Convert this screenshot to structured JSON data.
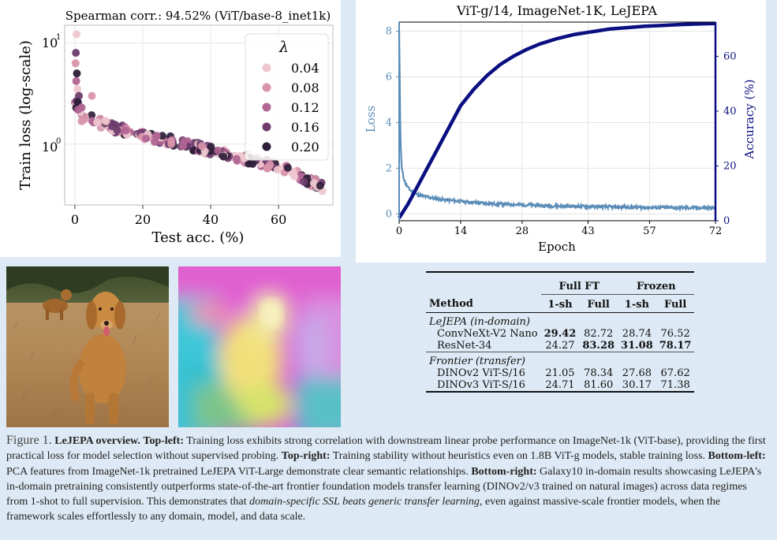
{
  "top_left": {
    "chart_data": {
      "type": "scatter",
      "title": "Spearman corr.: 94.52% (ViT/base-8_inet1k)",
      "xlabel": "Test acc. (%)",
      "ylabel": "Train loss (log-scale)",
      "yscale": "log",
      "xlim": [
        -3,
        76
      ],
      "ylim": [
        0.25,
        15
      ],
      "x_ticks": [
        "0",
        "20",
        "40",
        "60"
      ],
      "y_ticks": [
        "10",
        "10"
      ],
      "y_tick_exponents": [
        "1",
        "0"
      ],
      "legend_title": "λ",
      "legend_position": "top-right",
      "legend": [
        "0.04",
        "0.08",
        "0.12",
        "0.16",
        "0.20"
      ],
      "series_colors": [
        "#efc7cf",
        "#d995aa",
        "#b06592",
        "#6e3d6e",
        "#2e1e38"
      ]
    }
  },
  "top_right": {
    "chart_data": {
      "type": "line",
      "title": "ViT-g/14, ImageNet-1K, LeJEPA",
      "xlabel": "Epoch",
      "ylabel_left": "Loss",
      "ylabel_right": "Accuracy (%)",
      "x_ticks": [
        "0",
        "14",
        "28",
        "43",
        "57",
        "72"
      ],
      "y_left_ticks": [
        "0",
        "2",
        "4",
        "6",
        "8"
      ],
      "y_right_ticks": [
        "0",
        "20",
        "40",
        "60"
      ],
      "xlim": [
        0,
        72
      ],
      "ylim_left": [
        -0.3,
        8.4
      ],
      "ylim_right": [
        0,
        72.5
      ],
      "series": [
        {
          "name": "Loss",
          "axis": "left",
          "color": "#5b8db8",
          "x": [
            0,
            0.3,
            0.6,
            1,
            1.5,
            2,
            3,
            4,
            6,
            8,
            10,
            14,
            18,
            22,
            28,
            35,
            43,
            50,
            57,
            64,
            72
          ],
          "y": [
            8.0,
            3.2,
            2.0,
            1.6,
            1.3,
            1.15,
            0.95,
            0.85,
            0.75,
            0.68,
            0.62,
            0.55,
            0.48,
            0.44,
            0.4,
            0.35,
            0.32,
            0.3,
            0.28,
            0.27,
            0.26
          ]
        },
        {
          "name": "Accuracy (%)",
          "axis": "right",
          "color": "#0a0f80",
          "x": [
            0,
            2,
            4,
            6,
            8,
            10,
            12,
            14,
            17,
            20,
            23,
            26,
            29,
            32,
            36,
            40,
            44,
            48,
            52,
            56,
            60,
            64,
            68,
            72
          ],
          "y": [
            1,
            6,
            12,
            18,
            24,
            30,
            36,
            42,
            48,
            53,
            57,
            60,
            62.5,
            64.5,
            66.5,
            68,
            69,
            70,
            70.5,
            71,
            71.3,
            71.6,
            71.8,
            72
          ]
        }
      ]
    }
  },
  "table": {
    "group_headers": [
      "Full FT",
      "Frozen"
    ],
    "columns": [
      "Method",
      "1-sh",
      "Full",
      "1-sh",
      "Full"
    ],
    "sections": [
      {
        "title": "LeJEPA (in-domain)",
        "rows": [
          {
            "method": "ConvNeXt-V2 Nano",
            "values": [
              "29.42",
              "82.72",
              "28.74",
              "76.52"
            ],
            "bold": [
              true,
              false,
              false,
              false
            ]
          },
          {
            "method": "ResNet-34",
            "values": [
              "24.27",
              "83.28",
              "31.08",
              "78.17"
            ],
            "bold": [
              false,
              true,
              true,
              true
            ]
          }
        ]
      },
      {
        "title": "Frontier (transfer)",
        "rows": [
          {
            "method": "DINOv2 ViT-S/16",
            "values": [
              "21.05",
              "78.34",
              "27.68",
              "67.62"
            ],
            "bold": [
              false,
              false,
              false,
              false
            ]
          },
          {
            "method": "DINOv3 ViT-S/16",
            "values": [
              "24.71",
              "81.60",
              "30.17",
              "71.38"
            ],
            "bold": [
              false,
              false,
              false,
              false
            ]
          }
        ]
      }
    ]
  },
  "caption": {
    "label": "Figure 1.",
    "title": "LeJEPA overview.",
    "tl_label": "Top-left:",
    "tl_text": "Training loss exhibits strong correlation with downstream linear probe performance on ImageNet-1k (ViT-base), providing the first practical loss for model selection without supervised probing.",
    "tr_label": "Top-right:",
    "tr_text": "Training stability without heuristics even on 1.8B ViT-g models, stable training loss.",
    "bl_label": "Bottom-left:",
    "bl_text": "PCA features from ImageNet-1k pretrained LeJEPA ViT-Large demonstrate clear semantic relationships.",
    "br_label": "Bottom-right:",
    "br_text": "Galaxy10 in-domain results showcasing LeJEPA's in-domain pretraining consistently outperforms state-of-the-art frontier foundation models transfer learning (DINOv2/v3 trained on natural images) across data regimes from 1-shot to full supervision. This demonstrates that",
    "br_italic": "domain-specific SSL beats generic transfer learning",
    "br_end": ", even against massive-scale frontier models, when the framework scales effortlessly to any domain, model, and data scale."
  }
}
